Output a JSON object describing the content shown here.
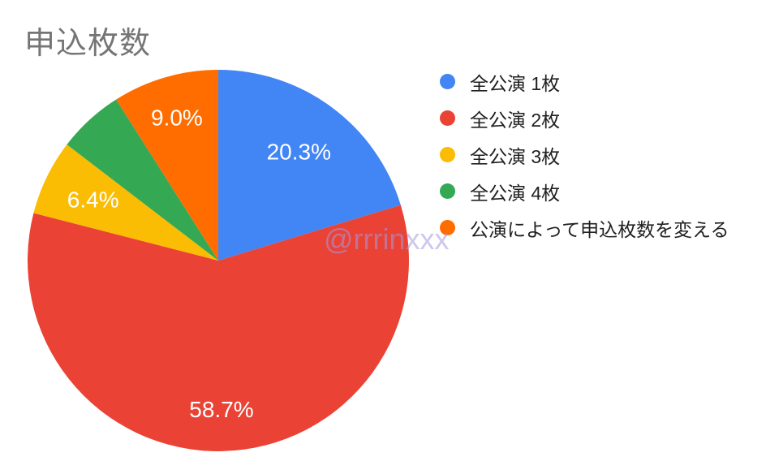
{
  "page": {
    "background_color": "#ffffff"
  },
  "watermark": {
    "text": "@rrrinxxx"
  },
  "chart_data": {
    "type": "pie",
    "title": "申込枚数",
    "title_color": "#757575",
    "legend_position": "right",
    "start_angle_deg": 0,
    "direction": "clockwise",
    "label_text_color": "#ffffff",
    "slices": [
      {
        "label": "全公演 1枚",
        "value_pct": 20.3,
        "pct_label": "20.3%",
        "color": "#4285F4"
      },
      {
        "label": "全公演 2枚",
        "value_pct": 58.7,
        "pct_label": "58.7%",
        "color": "#EA4335"
      },
      {
        "label": "全公演 3枚",
        "value_pct": 6.4,
        "pct_label": "6.4%",
        "color": "#FBBC04"
      },
      {
        "label": "全公演 4枚",
        "value_pct": 5.6,
        "pct_label": "",
        "color": "#34A853"
      },
      {
        "label": "公演によって申込枚数を変える",
        "value_pct": 9.0,
        "pct_label": "9.0%",
        "color": "#FF6D00"
      }
    ]
  }
}
